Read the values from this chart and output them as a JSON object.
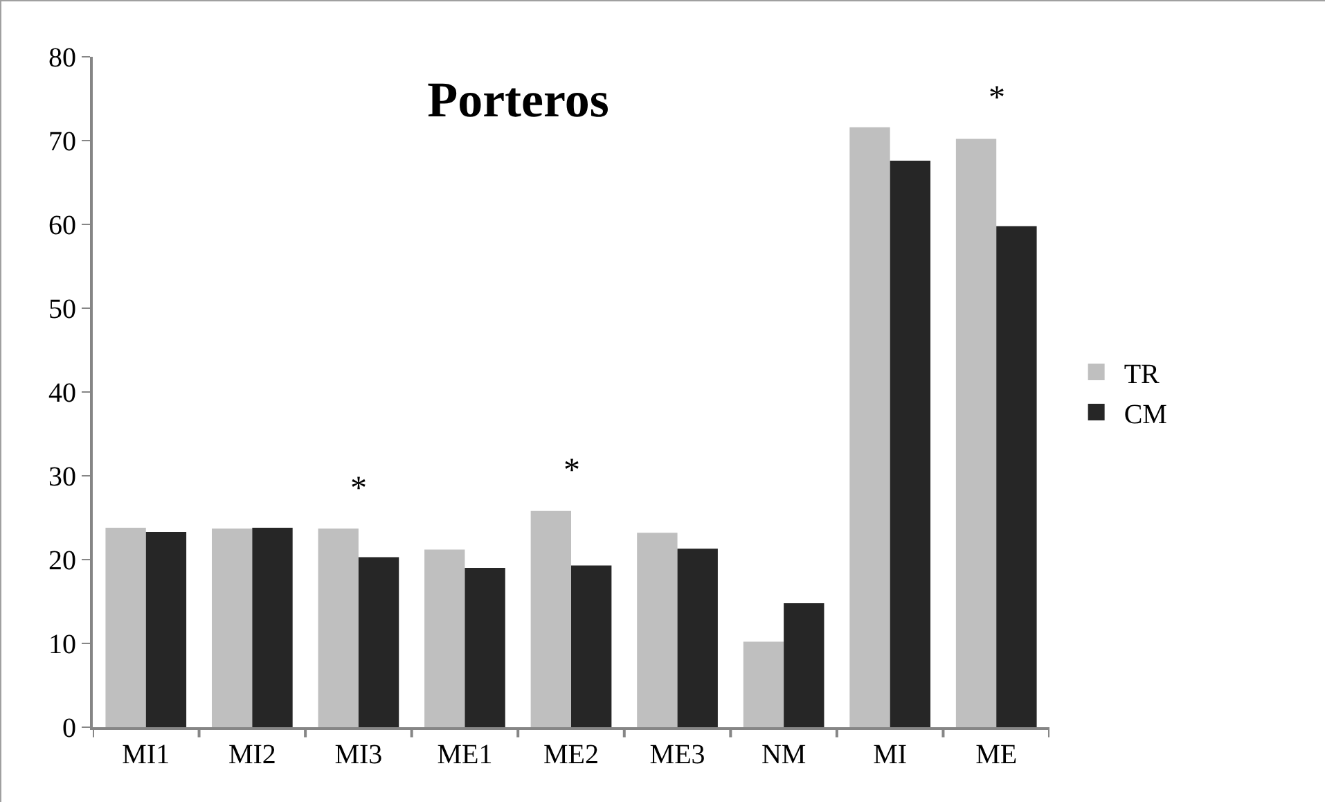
{
  "chart_data": {
    "type": "bar",
    "title": "Porteros",
    "categories": [
      "MI1",
      "MI2",
      "MI3",
      "ME1",
      "ME2",
      "ME3",
      "NM",
      "MI",
      "ME"
    ],
    "series": [
      {
        "name": "TR",
        "color": "#bfbfbf",
        "values": [
          23.8,
          23.7,
          23.7,
          21.2,
          25.8,
          23.2,
          10.2,
          71.6,
          70.2
        ]
      },
      {
        "name": "CM",
        "color": "#262626",
        "values": [
          23.3,
          23.8,
          20.3,
          19.0,
          19.3,
          21.3,
          14.8,
          67.6,
          59.8
        ]
      }
    ],
    "ylim": [
      0,
      80
    ],
    "yticks": [
      0,
      10,
      20,
      30,
      40,
      50,
      60,
      70,
      80
    ],
    "grid": false,
    "legend": "right",
    "annotations": [
      {
        "text": "*",
        "x": "MI3",
        "y": 23.7
      },
      {
        "text": "*",
        "x": "ME2",
        "y": 25.8
      },
      {
        "text": "*",
        "x": "ME",
        "y": 70.2
      }
    ]
  }
}
